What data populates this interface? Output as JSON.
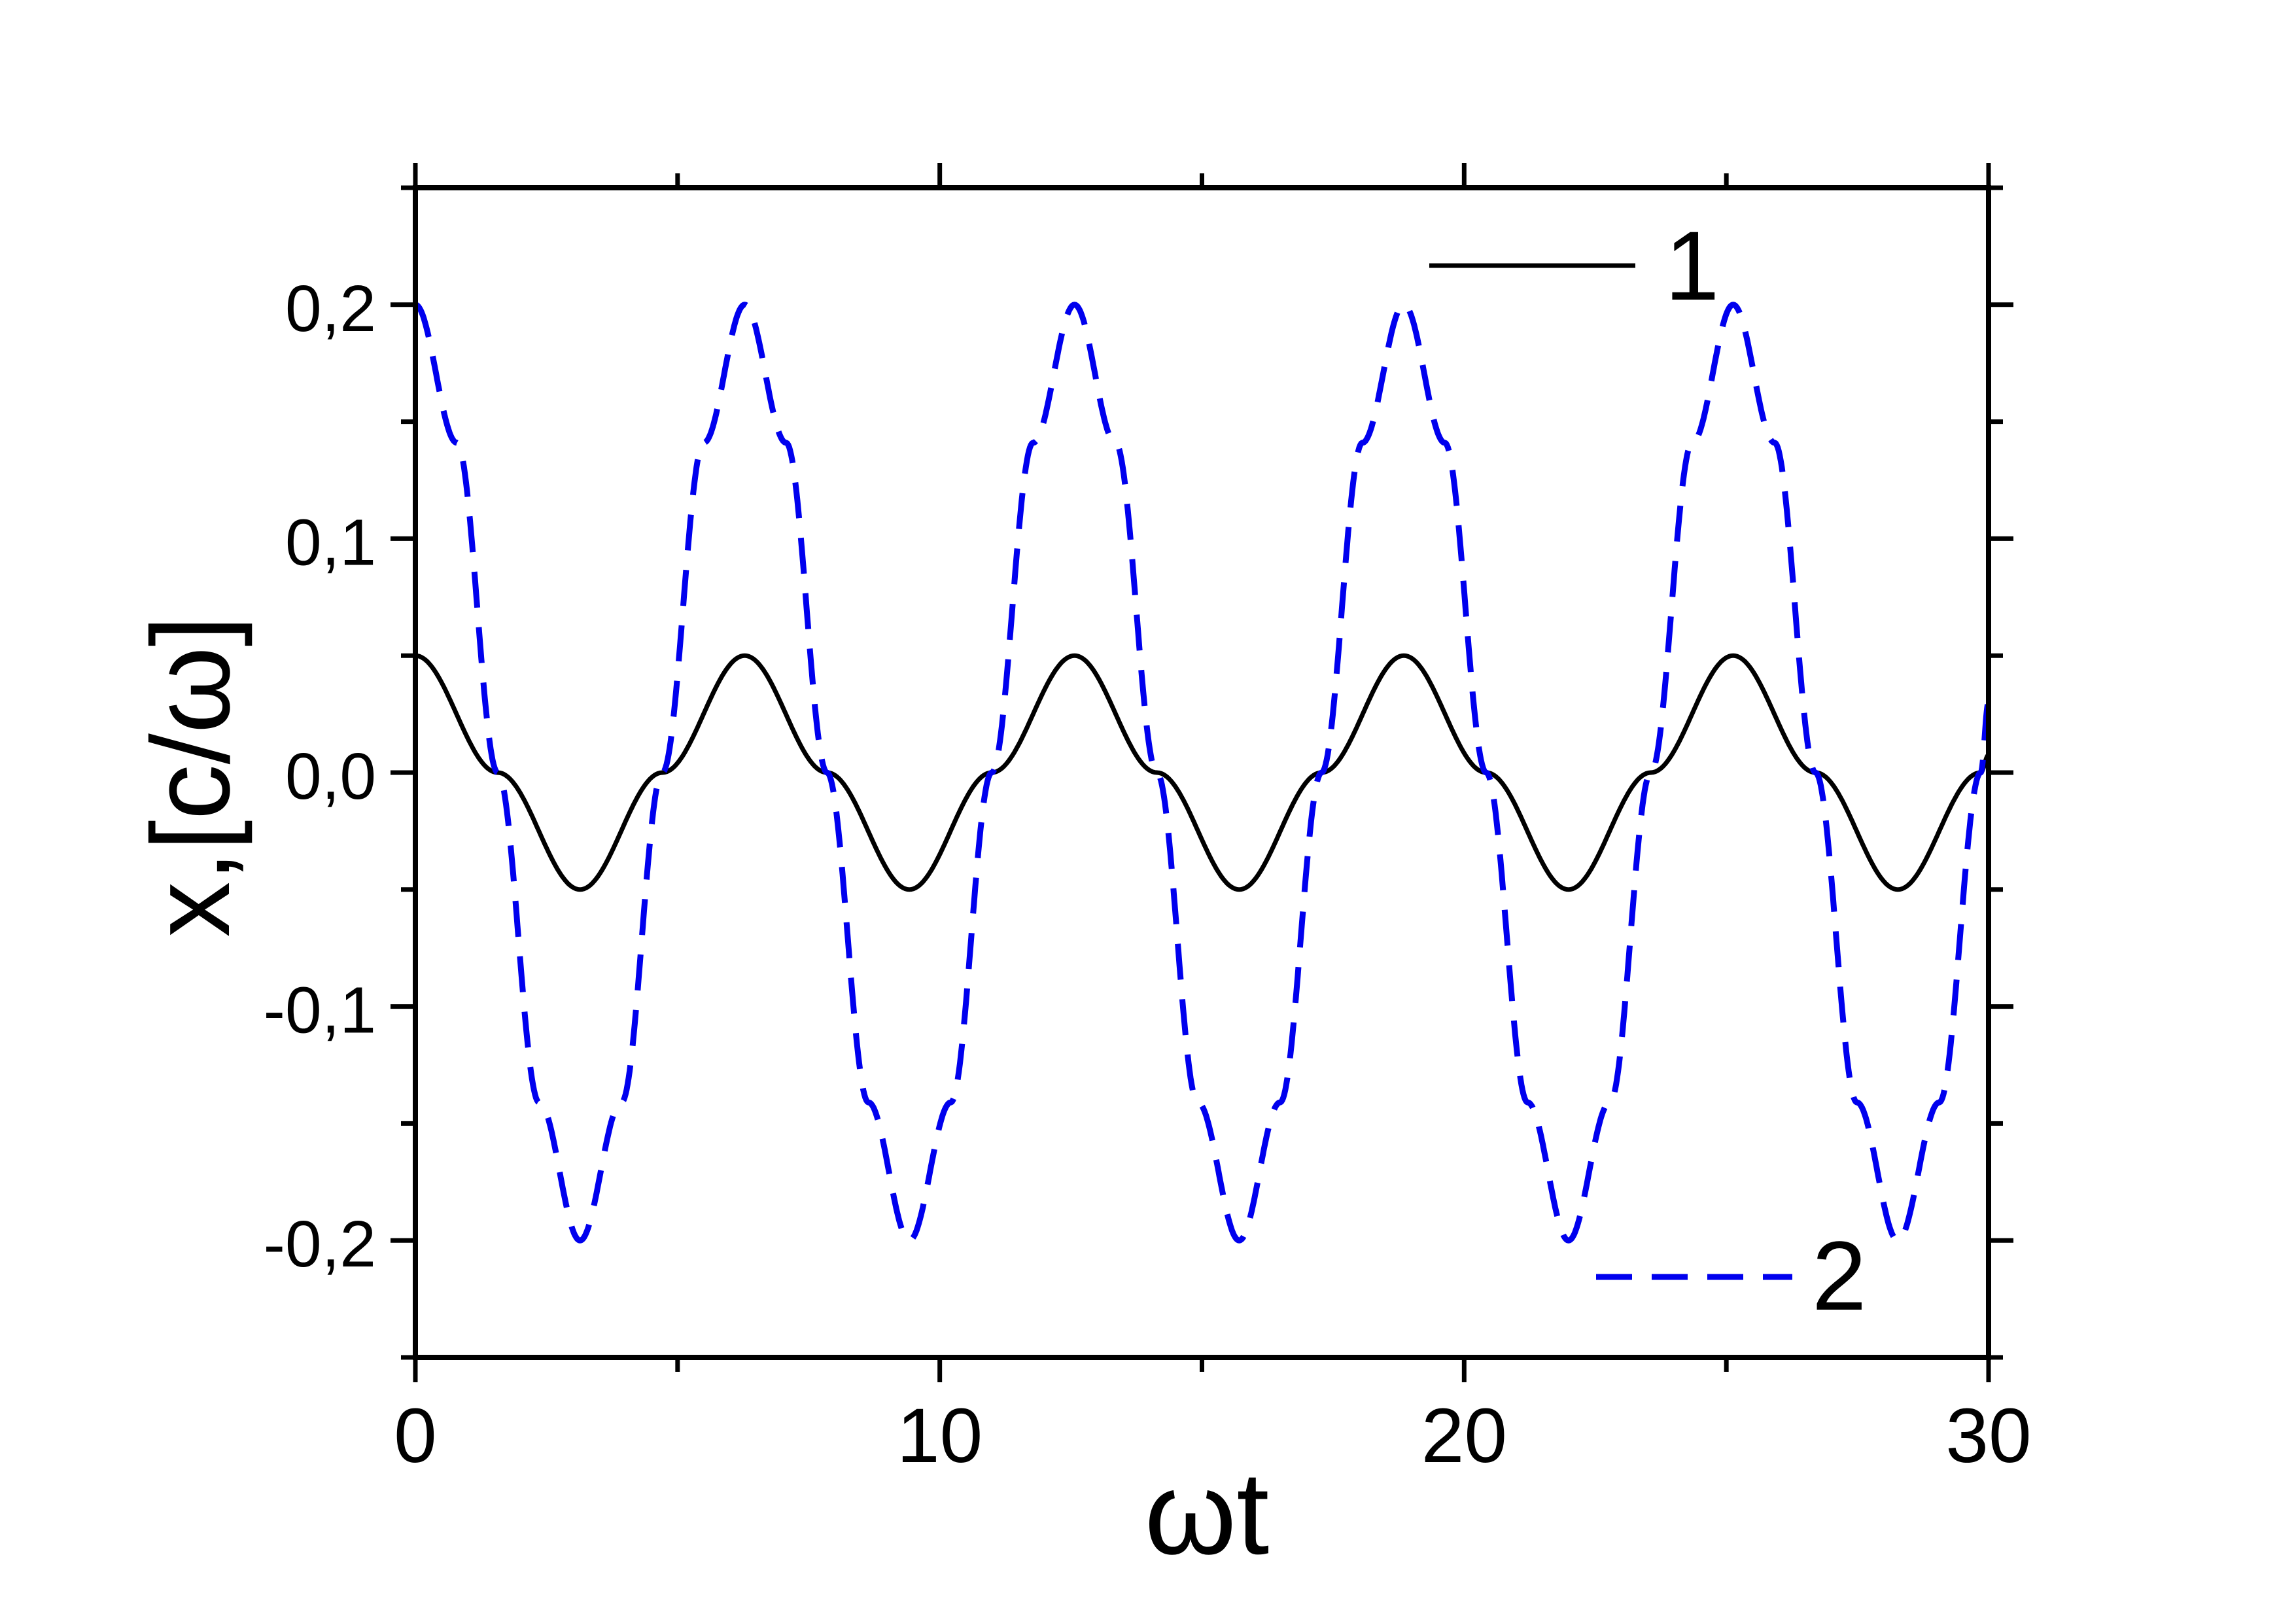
{
  "chart_data": {
    "type": "line",
    "title": "",
    "xlabel": "ωt",
    "ylabel": "x,[c/ω]",
    "xlim": [
      0,
      30
    ],
    "ylim": [
      -0.25,
      0.25
    ],
    "x_ticks": [
      0,
      10,
      20,
      30
    ],
    "x_tick_labels": [
      "0",
      "10",
      "20",
      "30"
    ],
    "y_ticks": [
      -0.2,
      -0.1,
      0.0,
      0.1,
      0.2
    ],
    "y_tick_labels": [
      "-0,2",
      "-0,1",
      "0,0",
      "0,1",
      "0,2"
    ],
    "grid": false,
    "legend_placement": "top-right / bottom-right",
    "series": [
      {
        "name": "1",
        "color": "#000000",
        "style": "solid",
        "x": [
          0,
          1.57,
          3.14,
          4.71,
          6.28,
          7.85,
          9.42,
          10.99,
          12.57,
          14.14,
          15.71,
          17.28,
          18.85,
          20.42,
          21.99,
          23.56,
          25.13,
          26.7,
          28.27,
          29.85,
          30
        ],
        "y": [
          0.05,
          0.0,
          -0.05,
          0.0,
          0.05,
          0.0,
          -0.05,
          0.0,
          0.05,
          0.0,
          -0.05,
          0.0,
          0.05,
          0.0,
          -0.05,
          0.0,
          0.05,
          0.0,
          -0.05,
          0.0,
          0.0075
        ]
      },
      {
        "name": "2",
        "color": "#0000ee",
        "style": "dashed",
        "x": [
          0,
          0.79,
          1.57,
          2.36,
          3.14,
          3.93,
          4.71,
          5.5,
          6.28,
          7.07,
          7.85,
          8.64,
          9.42,
          10.21,
          10.99,
          11.78,
          12.57,
          13.35,
          14.14,
          14.92,
          15.71,
          16.49,
          17.28,
          18.06,
          18.85,
          19.63,
          20.42,
          21.21,
          21.99,
          22.78,
          23.56,
          24.35,
          25.13,
          25.92,
          26.7,
          27.49,
          28.27,
          29.06,
          29.85,
          30
        ],
        "y": [
          0.2,
          0.141,
          0.0,
          -0.141,
          -0.2,
          -0.141,
          0.0,
          0.141,
          0.2,
          0.141,
          0.0,
          -0.141,
          -0.2,
          -0.141,
          0.0,
          0.141,
          0.2,
          0.141,
          0.0,
          -0.141,
          -0.2,
          -0.141,
          0.0,
          0.141,
          0.2,
          0.141,
          0.0,
          -0.141,
          -0.2,
          -0.141,
          0.0,
          0.141,
          0.2,
          0.141,
          0.0,
          -0.141,
          -0.2,
          -0.141,
          0.0,
          0.03
        ]
      }
    ]
  }
}
